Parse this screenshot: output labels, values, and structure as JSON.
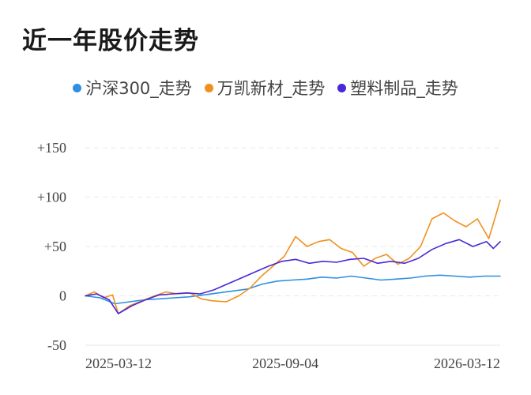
{
  "chart_data": {
    "type": "line",
    "title": "近一年股价走势",
    "xlabel": "",
    "ylabel": "",
    "ylim": [
      -50,
      150
    ],
    "y_ticks": [
      {
        "value": 150,
        "label": "+150"
      },
      {
        "value": 100,
        "label": "+100"
      },
      {
        "value": 50,
        "label": "+50"
      },
      {
        "value": 0,
        "label": "0"
      },
      {
        "value": -50,
        "label": "-50"
      }
    ],
    "x_ticks": [
      "2025-03-12",
      "2025-09-04",
      "2026-03-12"
    ],
    "xlim": [
      "2025-03-12",
      "2026-03-12"
    ],
    "grid": "horizontal dashed",
    "legend_position": "top-center",
    "series": [
      {
        "name": "沪深300_走势",
        "color": "#2f8fe0",
        "points": [
          [
            "2025-03-12",
            0
          ],
          [
            "2025-03-25",
            -2
          ],
          [
            "2025-04-07",
            -8
          ],
          [
            "2025-04-20",
            -6
          ],
          [
            "2025-05-03",
            -4
          ],
          [
            "2025-05-16",
            -3
          ],
          [
            "2025-05-29",
            -2
          ],
          [
            "2025-06-11",
            -1
          ],
          [
            "2025-06-24",
            1
          ],
          [
            "2025-07-07",
            3
          ],
          [
            "2025-07-20",
            5
          ],
          [
            "2025-08-02",
            7
          ],
          [
            "2025-08-15",
            12
          ],
          [
            "2025-08-28",
            15
          ],
          [
            "2025-09-10",
            16
          ],
          [
            "2025-09-23",
            17
          ],
          [
            "2025-10-06",
            19
          ],
          [
            "2025-10-19",
            18
          ],
          [
            "2025-11-01",
            20
          ],
          [
            "2025-11-14",
            18
          ],
          [
            "2025-11-27",
            16
          ],
          [
            "2025-12-10",
            17
          ],
          [
            "2025-12-23",
            18
          ],
          [
            "2026-01-05",
            20
          ],
          [
            "2026-01-18",
            21
          ],
          [
            "2026-01-31",
            20
          ],
          [
            "2026-02-13",
            19
          ],
          [
            "2026-02-26",
            20
          ],
          [
            "2026-03-12",
            20
          ]
        ]
      },
      {
        "name": "万凯新材_走势",
        "color": "#f0901c",
        "points": [
          [
            "2025-03-12",
            0
          ],
          [
            "2025-03-20",
            4
          ],
          [
            "2025-03-28",
            -2
          ],
          [
            "2025-04-05",
            1
          ],
          [
            "2025-04-10",
            -18
          ],
          [
            "2025-04-20",
            -10
          ],
          [
            "2025-05-01",
            -5
          ],
          [
            "2025-05-12",
            0
          ],
          [
            "2025-05-22",
            4
          ],
          [
            "2025-06-01",
            2
          ],
          [
            "2025-06-12",
            3
          ],
          [
            "2025-06-22",
            -3
          ],
          [
            "2025-07-02",
            -5
          ],
          [
            "2025-07-14",
            -6
          ],
          [
            "2025-07-25",
            0
          ],
          [
            "2025-08-04",
            8
          ],
          [
            "2025-08-14",
            20
          ],
          [
            "2025-08-24",
            30
          ],
          [
            "2025-09-03",
            40
          ],
          [
            "2025-09-13",
            60
          ],
          [
            "2025-09-23",
            50
          ],
          [
            "2025-10-03",
            55
          ],
          [
            "2025-10-13",
            57
          ],
          [
            "2025-10-23",
            48
          ],
          [
            "2025-11-02",
            44
          ],
          [
            "2025-11-12",
            30
          ],
          [
            "2025-11-22",
            38
          ],
          [
            "2025-12-02",
            42
          ],
          [
            "2025-12-12",
            32
          ],
          [
            "2025-12-22",
            38
          ],
          [
            "2026-01-01",
            50
          ],
          [
            "2026-01-11",
            78
          ],
          [
            "2026-01-21",
            84
          ],
          [
            "2026-01-31",
            76
          ],
          [
            "2026-02-10",
            70
          ],
          [
            "2026-02-20",
            78
          ],
          [
            "2026-03-02",
            58
          ],
          [
            "2026-03-09",
            85
          ],
          [
            "2026-03-12",
            97
          ]
        ]
      },
      {
        "name": "塑料制品_走势",
        "color": "#4a28d8",
        "points": [
          [
            "2025-03-12",
            0
          ],
          [
            "2025-03-22",
            2
          ],
          [
            "2025-04-02",
            -4
          ],
          [
            "2025-04-10",
            -18
          ],
          [
            "2025-04-22",
            -10
          ],
          [
            "2025-05-04",
            -4
          ],
          [
            "2025-05-16",
            1
          ],
          [
            "2025-05-28",
            2
          ],
          [
            "2025-06-09",
            3
          ],
          [
            "2025-06-21",
            2
          ],
          [
            "2025-07-03",
            6
          ],
          [
            "2025-07-15",
            12
          ],
          [
            "2025-07-27",
            18
          ],
          [
            "2025-08-08",
            24
          ],
          [
            "2025-08-20",
            30
          ],
          [
            "2025-09-01",
            35
          ],
          [
            "2025-09-13",
            37
          ],
          [
            "2025-09-25",
            33
          ],
          [
            "2025-10-07",
            35
          ],
          [
            "2025-10-19",
            34
          ],
          [
            "2025-10-31",
            37
          ],
          [
            "2025-11-12",
            38
          ],
          [
            "2025-11-24",
            33
          ],
          [
            "2025-12-06",
            35
          ],
          [
            "2025-12-18",
            33
          ],
          [
            "2025-12-30",
            38
          ],
          [
            "2026-01-11",
            47
          ],
          [
            "2026-01-23",
            53
          ],
          [
            "2026-02-04",
            57
          ],
          [
            "2026-02-16",
            50
          ],
          [
            "2026-02-28",
            55
          ],
          [
            "2026-03-06",
            48
          ],
          [
            "2026-03-12",
            55
          ]
        ]
      }
    ]
  }
}
